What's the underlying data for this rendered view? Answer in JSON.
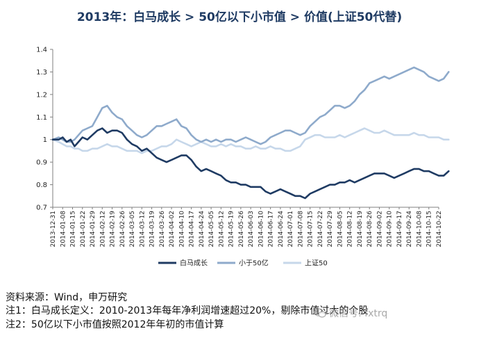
{
  "chart_data": {
    "type": "line",
    "title": "2013年：白马成长 > 50亿以下小市值 > 价值(上证50代替)",
    "xlabel": "",
    "ylabel": "",
    "ylim": [
      0.7,
      1.4
    ],
    "yticks": [
      "0.7",
      "0.8",
      "0.9",
      "1",
      "1.1",
      "1.2",
      "1.3",
      "1.4"
    ],
    "categories": [
      "2013-12-31",
      "2014-01-08",
      "2014-01-15",
      "2014-01-22",
      "2014-01-29",
      "2014-02-12",
      "2014-02-19",
      "2014-02-26",
      "2014-03-05",
      "2014-03-12",
      "2014-03-19",
      "2014-03-26",
      "2014-04-02",
      "2014-04-10",
      "2014-04-17",
      "2014-04-24",
      "2014-05-05",
      "2014-05-12",
      "2014-05-19",
      "2014-05-26",
      "2014-06-03",
      "2014-06-10",
      "2014-06-17",
      "2014-06-24",
      "2014-07-01",
      "2014-07-08",
      "2014-07-15",
      "2014-07-22",
      "2014-07-29",
      "2014-08-05",
      "2014-08-12",
      "2014-08-19",
      "2014-08-26",
      "2014-09-02",
      "2014-09-10",
      "2014-09-17",
      "2014-09-24",
      "2014-10-08",
      "2014-10-15",
      "2014-10-22"
    ],
    "legend_position": "bottom",
    "series": [
      {
        "name": "白马成长",
        "color": "#1f3b63",
        "x": [
          0,
          0.6,
          1,
          1.4,
          1.8,
          2.2,
          2.6,
          3,
          3.5,
          4,
          4.5,
          5,
          5.5,
          6,
          6.5,
          7,
          7.5,
          8,
          8.5,
          9,
          9.5,
          10,
          10.5,
          11,
          11.5,
          12,
          12.5,
          13,
          13.5,
          14,
          14.5,
          15,
          15.5,
          16,
          16.5,
          17,
          17.5,
          18,
          18.5,
          19,
          19.5,
          20,
          20.5,
          21,
          21.5,
          22,
          22.5,
          23,
          23.5,
          24,
          24.5,
          25,
          25.5,
          26,
          26.5,
          27,
          27.5,
          28,
          28.5,
          29,
          29.5,
          30,
          30.5,
          31,
          31.5,
          32,
          32.5,
          33,
          33.5,
          34,
          34.5,
          35,
          35.5,
          36,
          36.5,
          37,
          37.5,
          38,
          38.5,
          39,
          39.5,
          40
        ],
        "values": [
          1.0,
          1.0,
          1.01,
          0.99,
          1.0,
          0.97,
          0.99,
          1.01,
          1.0,
          1.02,
          1.04,
          1.05,
          1.03,
          1.04,
          1.04,
          1.03,
          1.0,
          0.98,
          0.97,
          0.95,
          0.96,
          0.94,
          0.92,
          0.91,
          0.9,
          0.91,
          0.92,
          0.93,
          0.93,
          0.91,
          0.88,
          0.86,
          0.87,
          0.86,
          0.85,
          0.84,
          0.82,
          0.81,
          0.81,
          0.8,
          0.8,
          0.79,
          0.79,
          0.79,
          0.77,
          0.76,
          0.77,
          0.78,
          0.77,
          0.76,
          0.75,
          0.75,
          0.74,
          0.76,
          0.77,
          0.78,
          0.79,
          0.8,
          0.8,
          0.81,
          0.81,
          0.82,
          0.81,
          0.82,
          0.83,
          0.84,
          0.85,
          0.85,
          0.85,
          0.84,
          0.83,
          0.84,
          0.85,
          0.86,
          0.87,
          0.87,
          0.86,
          0.86,
          0.85,
          0.84,
          0.84,
          0.86
        ]
      },
      {
        "name": "小于50亿",
        "color": "#8eaacb",
        "x": [
          0,
          0.6,
          1,
          1.4,
          1.8,
          2.2,
          2.6,
          3,
          3.5,
          4,
          4.5,
          5,
          5.5,
          6,
          6.5,
          7,
          7.5,
          8,
          8.5,
          9,
          9.5,
          10,
          10.5,
          11,
          11.5,
          12,
          12.5,
          13,
          13.5,
          14,
          14.5,
          15,
          15.5,
          16,
          16.5,
          17,
          17.5,
          18,
          18.5,
          19,
          19.5,
          20,
          20.5,
          21,
          21.5,
          22,
          22.5,
          23,
          23.5,
          24,
          24.5,
          25,
          25.5,
          26,
          26.5,
          27,
          27.5,
          28,
          28.5,
          29,
          29.5,
          30,
          30.5,
          31,
          31.5,
          32,
          32.5,
          33,
          33.5,
          34,
          34.5,
          35,
          35.5,
          36,
          36.5,
          37,
          37.5,
          38,
          38.5,
          39,
          39.5,
          40
        ],
        "values": [
          1.0,
          1.01,
          1.0,
          0.99,
          0.99,
          1.0,
          1.02,
          1.04,
          1.05,
          1.06,
          1.1,
          1.14,
          1.15,
          1.12,
          1.1,
          1.09,
          1.06,
          1.04,
          1.02,
          1.01,
          1.02,
          1.04,
          1.06,
          1.06,
          1.07,
          1.08,
          1.09,
          1.06,
          1.05,
          1.02,
          1.0,
          0.99,
          1.0,
          0.99,
          1.0,
          0.99,
          1.0,
          1.0,
          0.99,
          1.0,
          1.01,
          1.0,
          0.99,
          0.98,
          0.99,
          1.01,
          1.02,
          1.03,
          1.04,
          1.04,
          1.03,
          1.02,
          1.03,
          1.06,
          1.08,
          1.1,
          1.11,
          1.13,
          1.15,
          1.15,
          1.14,
          1.15,
          1.17,
          1.2,
          1.22,
          1.25,
          1.26,
          1.27,
          1.28,
          1.27,
          1.28,
          1.29,
          1.3,
          1.31,
          1.32,
          1.31,
          1.3,
          1.28,
          1.27,
          1.26,
          1.27,
          1.3
        ]
      },
      {
        "name": "上证50",
        "color": "#c6d7ea",
        "x": [
          0,
          0.6,
          1,
          1.4,
          1.8,
          2.2,
          2.6,
          3,
          3.5,
          4,
          4.5,
          5,
          5.5,
          6,
          6.5,
          7,
          7.5,
          8,
          8.5,
          9,
          9.5,
          10,
          10.5,
          11,
          11.5,
          12,
          12.5,
          13,
          13.5,
          14,
          14.5,
          15,
          15.5,
          16,
          16.5,
          17,
          17.5,
          18,
          18.5,
          19,
          19.5,
          20,
          20.5,
          21,
          21.5,
          22,
          22.5,
          23,
          23.5,
          24,
          24.5,
          25,
          25.5,
          26,
          26.5,
          27,
          27.5,
          28,
          28.5,
          29,
          29.5,
          30,
          30.5,
          31,
          31.5,
          32,
          32.5,
          33,
          33.5,
          34,
          34.5,
          35,
          35.5,
          36,
          36.5,
          37,
          37.5,
          38,
          38.5,
          39,
          39.5,
          40
        ],
        "values": [
          1.0,
          0.99,
          0.98,
          0.97,
          0.97,
          0.96,
          0.96,
          0.95,
          0.95,
          0.96,
          0.96,
          0.97,
          0.98,
          0.97,
          0.97,
          0.96,
          0.95,
          0.95,
          0.95,
          0.94,
          0.95,
          0.95,
          0.96,
          0.97,
          0.97,
          0.98,
          1.0,
          0.99,
          0.98,
          0.97,
          0.98,
          0.99,
          0.98,
          0.97,
          0.97,
          0.98,
          0.97,
          0.98,
          0.97,
          0.97,
          0.96,
          0.96,
          0.97,
          0.96,
          0.96,
          0.97,
          0.96,
          0.96,
          0.95,
          0.95,
          0.96,
          0.97,
          1.0,
          1.01,
          1.02,
          1.02,
          1.01,
          1.01,
          1.01,
          1.02,
          1.01,
          1.02,
          1.03,
          1.04,
          1.05,
          1.04,
          1.03,
          1.03,
          1.04,
          1.03,
          1.02,
          1.02,
          1.02,
          1.02,
          1.03,
          1.02,
          1.02,
          1.01,
          1.01,
          1.01,
          1.0,
          1.0
        ]
      }
    ]
  },
  "notes": {
    "source": "资料来源：Wind，申万研究",
    "note1": "注1：白马成长定义：2010-2013年每年净利润增速超过20%，剔除市值过大的个股",
    "note2": "注2：50亿以下小市值按照2012年年初的市值计算"
  },
  "watermark": "微信号: fxtrq"
}
